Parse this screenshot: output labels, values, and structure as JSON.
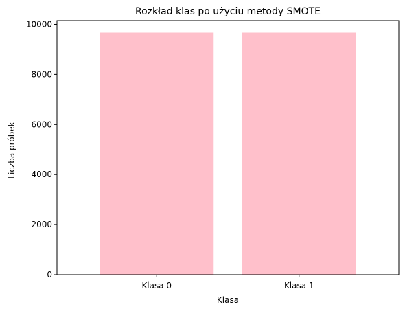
{
  "chart_data": {
    "type": "bar",
    "title": "Rozkład klas po użyciu metody SMOTE",
    "xlabel": "Klasa",
    "ylabel": "Liczba próbek",
    "categories": [
      "Klasa 0",
      "Klasa 1"
    ],
    "values": [
      9670,
      9670
    ],
    "ylim": [
      0,
      10150
    ],
    "yticks": [
      0,
      2000,
      4000,
      6000,
      8000,
      10000
    ],
    "ytick_labels": [
      "0",
      "2000",
      "4000",
      "6000",
      "8000",
      "10000"
    ],
    "grid": false,
    "legend": null,
    "colors": {
      "bar": "#ffc0cb",
      "axis": "#000000",
      "background": "#ffffff"
    }
  }
}
